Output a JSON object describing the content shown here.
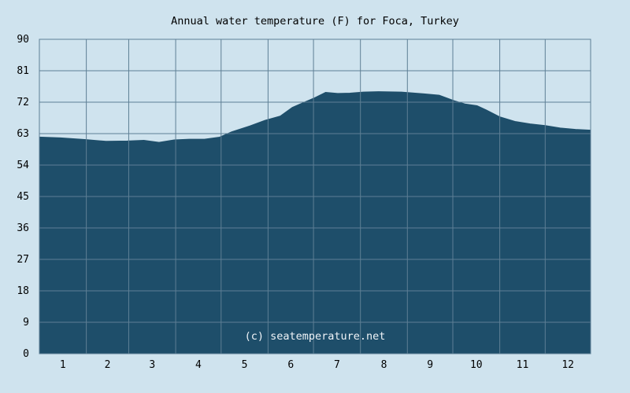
{
  "chart_data": {
    "type": "area",
    "title": "Annual water temperature (F) for Foca, Turkey",
    "xlabel": "",
    "ylabel": "",
    "watermark": "(c) seatemperature.net",
    "ylim": [
      0,
      90
    ],
    "y_ticks": [
      0,
      9,
      18,
      27,
      36,
      45,
      54,
      63,
      72,
      81,
      90
    ],
    "x_tick_labels": [
      "1",
      "2",
      "3",
      "4",
      "5",
      "6",
      "7",
      "8",
      "9",
      "10",
      "11",
      "12"
    ],
    "grid": true,
    "series": [
      {
        "day": [
          1,
          15,
          31,
          45,
          59,
          70,
          80,
          90,
          100,
          110,
          120,
          128,
          140,
          150,
          160,
          168,
          176,
          183,
          190,
          198,
          206,
          215,
          225,
          240,
          255,
          265,
          275,
          282,
          290,
          296,
          305,
          315,
          325,
          335,
          345,
          355,
          365
        ],
        "values": [
          62.0,
          61.8,
          61.3,
          60.8,
          60.9,
          61.1,
          60.5,
          61.2,
          61.4,
          61.4,
          62.0,
          63.5,
          65.2,
          66.8,
          68.0,
          70.5,
          72.0,
          73.3,
          74.8,
          74.5,
          74.6,
          74.9,
          75.0,
          74.9,
          74.4,
          74.0,
          72.4,
          71.5,
          71.0,
          69.8,
          67.8,
          66.5,
          65.8,
          65.3,
          64.6,
          64.2,
          64.0
        ]
      }
    ],
    "colors": {
      "background": "#cfe3ee",
      "fill": "#1e4e6a",
      "grid": "#5e7f95",
      "plot_frame": "#5e7f95",
      "watermark": "#f0f4f8"
    }
  }
}
